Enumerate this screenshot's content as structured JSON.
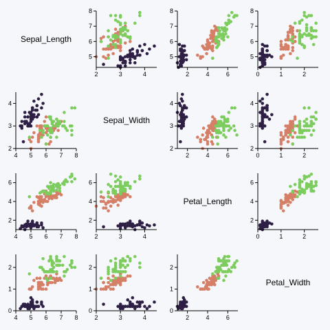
{
  "chart_data": {
    "type": "scatter",
    "title": "",
    "variables": [
      "Sepal_Length",
      "Sepal_Width",
      "Petal_Length",
      "Petal_Width"
    ],
    "axes": {
      "Sepal_Length": {
        "ticks": [
          4,
          5,
          6,
          7,
          8
        ],
        "range": [
          4,
          8
        ]
      },
      "Sepal_Width": {
        "ticks": [
          2,
          3,
          4
        ],
        "range": [
          2,
          4.5
        ]
      },
      "Petal_Length": {
        "ticks": [
          2,
          4,
          6
        ],
        "range": [
          1,
          7
        ]
      },
      "Petal_Width": {
        "ticks": [
          0,
          1,
          2
        ],
        "range": [
          0,
          2.6
        ]
      }
    },
    "x_axes_by_column": {
      "Sepal_Length": {
        "ticks": [
          4,
          5,
          6,
          7,
          8
        ],
        "range": [
          4,
          8
        ]
      },
      "Sepal_Width": {
        "ticks": [
          2,
          3,
          4
        ],
        "range": [
          2,
          4.5
        ]
      },
      "Petal_Length": {
        "ticks": [
          2,
          4,
          6
        ],
        "range": [
          1,
          7
        ]
      },
      "Petal_Width": {
        "ticks": [
          0,
          1,
          2
        ],
        "range": [
          0,
          2.6
        ]
      }
    },
    "y_axes_by_row": {
      "Sepal_Length": {
        "ticks": [
          5,
          6,
          7,
          8
        ],
        "range": [
          4.3,
          8
        ]
      },
      "Sepal_Width": {
        "ticks": [
          2,
          3,
          4
        ],
        "range": [
          2,
          4.5
        ]
      },
      "Petal_Length": {
        "ticks": [
          2,
          4,
          6
        ],
        "range": [
          1,
          7
        ]
      },
      "Petal_Width": {
        "ticks": [
          0,
          1,
          2
        ],
        "range": [
          0,
          2.6
        ]
      }
    },
    "grid": false,
    "legend": "none",
    "groups": [
      {
        "color": "#2e1f45",
        "points": [
          [
            5.1,
            3.5,
            1.4,
            0.2
          ],
          [
            4.9,
            3.0,
            1.4,
            0.2
          ],
          [
            4.7,
            3.2,
            1.3,
            0.2
          ],
          [
            4.6,
            3.1,
            1.5,
            0.2
          ],
          [
            5.0,
            3.6,
            1.4,
            0.2
          ],
          [
            5.4,
            3.9,
            1.7,
            0.4
          ],
          [
            4.6,
            3.4,
            1.4,
            0.3
          ],
          [
            5.0,
            3.4,
            1.5,
            0.2
          ],
          [
            4.4,
            2.9,
            1.4,
            0.2
          ],
          [
            4.9,
            3.1,
            1.5,
            0.1
          ],
          [
            5.4,
            3.7,
            1.5,
            0.2
          ],
          [
            4.8,
            3.4,
            1.6,
            0.2
          ],
          [
            4.8,
            3.0,
            1.4,
            0.1
          ],
          [
            4.3,
            3.0,
            1.1,
            0.1
          ],
          [
            5.8,
            4.0,
            1.2,
            0.2
          ],
          [
            5.7,
            4.4,
            1.5,
            0.4
          ],
          [
            5.4,
            3.9,
            1.3,
            0.4
          ],
          [
            5.1,
            3.5,
            1.4,
            0.3
          ],
          [
            5.7,
            3.8,
            1.7,
            0.3
          ],
          [
            5.1,
            3.8,
            1.5,
            0.3
          ],
          [
            5.4,
            3.4,
            1.7,
            0.2
          ],
          [
            5.1,
            3.7,
            1.5,
            0.4
          ],
          [
            4.6,
            3.6,
            1.0,
            0.2
          ],
          [
            5.1,
            3.3,
            1.7,
            0.5
          ],
          [
            4.8,
            3.4,
            1.9,
            0.2
          ],
          [
            5.0,
            3.0,
            1.6,
            0.2
          ],
          [
            5.0,
            3.4,
            1.6,
            0.4
          ],
          [
            5.2,
            3.5,
            1.5,
            0.2
          ],
          [
            5.2,
            3.4,
            1.4,
            0.2
          ],
          [
            4.7,
            3.2,
            1.6,
            0.2
          ],
          [
            4.8,
            3.1,
            1.6,
            0.2
          ],
          [
            5.4,
            3.4,
            1.5,
            0.4
          ],
          [
            5.2,
            4.1,
            1.5,
            0.1
          ],
          [
            5.5,
            4.2,
            1.4,
            0.2
          ],
          [
            4.9,
            3.1,
            1.5,
            0.2
          ],
          [
            5.0,
            3.2,
            1.2,
            0.2
          ],
          [
            5.5,
            3.5,
            1.3,
            0.2
          ],
          [
            4.9,
            3.6,
            1.4,
            0.1
          ],
          [
            4.4,
            3.0,
            1.3,
            0.2
          ],
          [
            5.1,
            3.4,
            1.5,
            0.2
          ],
          [
            5.0,
            3.5,
            1.3,
            0.3
          ],
          [
            4.5,
            2.3,
            1.3,
            0.3
          ],
          [
            4.4,
            3.2,
            1.3,
            0.2
          ],
          [
            5.0,
            3.5,
            1.6,
            0.6
          ],
          [
            5.1,
            3.8,
            1.9,
            0.4
          ],
          [
            4.8,
            3.0,
            1.4,
            0.3
          ],
          [
            5.1,
            3.8,
            1.6,
            0.2
          ],
          [
            4.6,
            3.2,
            1.4,
            0.2
          ],
          [
            5.3,
            3.7,
            1.5,
            0.2
          ],
          [
            5.0,
            3.3,
            1.4,
            0.2
          ]
        ]
      },
      {
        "color": "#d47f66",
        "points": [
          [
            7.0,
            3.2,
            4.7,
            1.4
          ],
          [
            6.4,
            3.2,
            4.5,
            1.5
          ],
          [
            6.9,
            3.1,
            4.9,
            1.5
          ],
          [
            5.5,
            2.3,
            4.0,
            1.3
          ],
          [
            6.5,
            2.8,
            4.6,
            1.5
          ],
          [
            5.7,
            2.8,
            4.5,
            1.3
          ],
          [
            6.3,
            3.3,
            4.7,
            1.6
          ],
          [
            4.9,
            2.4,
            3.3,
            1.0
          ],
          [
            6.6,
            2.9,
            4.6,
            1.3
          ],
          [
            5.2,
            2.7,
            3.9,
            1.4
          ],
          [
            5.0,
            2.0,
            3.5,
            1.0
          ],
          [
            5.9,
            3.0,
            4.2,
            1.5
          ],
          [
            6.0,
            2.2,
            4.0,
            1.0
          ],
          [
            6.1,
            2.9,
            4.7,
            1.4
          ],
          [
            5.6,
            2.9,
            3.6,
            1.3
          ],
          [
            6.7,
            3.1,
            4.4,
            1.4
          ],
          [
            5.6,
            3.0,
            4.5,
            1.5
          ],
          [
            5.8,
            2.7,
            4.1,
            1.0
          ],
          [
            6.2,
            2.2,
            4.5,
            1.5
          ],
          [
            5.6,
            2.5,
            3.9,
            1.1
          ],
          [
            5.9,
            3.2,
            4.8,
            1.8
          ],
          [
            6.1,
            2.8,
            4.0,
            1.3
          ],
          [
            6.3,
            2.5,
            4.9,
            1.5
          ],
          [
            6.1,
            2.8,
            4.7,
            1.2
          ],
          [
            6.4,
            2.9,
            4.3,
            1.3
          ],
          [
            6.6,
            3.0,
            4.4,
            1.4
          ],
          [
            6.8,
            2.8,
            4.8,
            1.4
          ],
          [
            6.7,
            3.0,
            5.0,
            1.7
          ],
          [
            6.0,
            2.9,
            4.5,
            1.5
          ],
          [
            5.7,
            2.6,
            3.5,
            1.0
          ],
          [
            5.5,
            2.4,
            3.8,
            1.1
          ],
          [
            5.5,
            2.4,
            3.7,
            1.0
          ],
          [
            5.8,
            2.7,
            3.9,
            1.2
          ],
          [
            6.0,
            2.7,
            5.1,
            1.6
          ],
          [
            5.4,
            3.0,
            4.5,
            1.5
          ],
          [
            6.0,
            3.4,
            4.5,
            1.6
          ],
          [
            6.7,
            3.1,
            4.7,
            1.5
          ],
          [
            6.3,
            2.3,
            4.4,
            1.3
          ],
          [
            5.6,
            3.0,
            4.1,
            1.3
          ],
          [
            5.5,
            2.5,
            4.0,
            1.3
          ],
          [
            5.5,
            2.6,
            4.4,
            1.2
          ],
          [
            6.1,
            3.0,
            4.6,
            1.4
          ],
          [
            5.8,
            2.6,
            4.0,
            1.2
          ],
          [
            5.0,
            2.3,
            3.3,
            1.0
          ],
          [
            5.6,
            2.7,
            4.2,
            1.3
          ],
          [
            5.7,
            3.0,
            4.2,
            1.2
          ],
          [
            5.7,
            2.9,
            4.2,
            1.3
          ],
          [
            6.2,
            2.9,
            4.3,
            1.3
          ],
          [
            5.1,
            2.5,
            3.0,
            1.1
          ],
          [
            5.7,
            2.8,
            4.1,
            1.3
          ]
        ]
      },
      {
        "color": "#7ccc5e",
        "points": [
          [
            6.3,
            3.3,
            6.0,
            2.5
          ],
          [
            5.8,
            2.7,
            5.1,
            1.9
          ],
          [
            7.1,
            3.0,
            5.9,
            2.1
          ],
          [
            6.3,
            2.9,
            5.6,
            1.8
          ],
          [
            6.5,
            3.0,
            5.8,
            2.2
          ],
          [
            7.6,
            3.0,
            6.6,
            2.1
          ],
          [
            4.9,
            2.5,
            4.5,
            1.7
          ],
          [
            7.3,
            2.9,
            6.3,
            1.8
          ],
          [
            6.7,
            2.5,
            5.8,
            1.8
          ],
          [
            7.2,
            3.6,
            6.1,
            2.5
          ],
          [
            6.5,
            3.2,
            5.1,
            2.0
          ],
          [
            6.4,
            2.7,
            5.3,
            1.9
          ],
          [
            6.8,
            3.0,
            5.5,
            2.1
          ],
          [
            5.7,
            2.5,
            5.0,
            2.0
          ],
          [
            5.8,
            2.8,
            5.1,
            2.4
          ],
          [
            6.4,
            3.2,
            5.3,
            2.3
          ],
          [
            6.5,
            3.0,
            5.5,
            1.8
          ],
          [
            7.7,
            3.8,
            6.7,
            2.2
          ],
          [
            7.7,
            2.6,
            6.9,
            2.3
          ],
          [
            6.0,
            2.2,
            5.0,
            1.5
          ],
          [
            6.9,
            3.2,
            5.7,
            2.3
          ],
          [
            5.6,
            2.8,
            4.9,
            2.0
          ],
          [
            7.7,
            2.8,
            6.7,
            2.0
          ],
          [
            6.3,
            2.7,
            4.9,
            1.8
          ],
          [
            6.7,
            3.3,
            5.7,
            2.1
          ],
          [
            7.2,
            3.2,
            6.0,
            1.8
          ],
          [
            6.2,
            2.8,
            4.8,
            1.8
          ],
          [
            6.1,
            3.0,
            4.9,
            1.8
          ],
          [
            6.4,
            2.8,
            5.6,
            2.1
          ],
          [
            7.2,
            3.0,
            5.8,
            1.6
          ],
          [
            7.4,
            2.8,
            6.1,
            1.9
          ],
          [
            7.9,
            3.8,
            6.4,
            2.0
          ],
          [
            6.4,
            2.8,
            5.6,
            2.2
          ],
          [
            6.3,
            2.8,
            5.1,
            1.5
          ],
          [
            6.1,
            2.6,
            5.6,
            1.4
          ],
          [
            7.7,
            3.0,
            6.1,
            2.3
          ],
          [
            6.3,
            3.4,
            5.6,
            2.4
          ],
          [
            6.4,
            3.1,
            5.5,
            1.8
          ],
          [
            6.0,
            3.0,
            4.8,
            1.8
          ],
          [
            6.9,
            3.1,
            5.4,
            2.1
          ],
          [
            6.7,
            3.1,
            5.6,
            2.4
          ],
          [
            6.9,
            3.1,
            5.1,
            2.3
          ],
          [
            5.8,
            2.7,
            5.1,
            1.9
          ],
          [
            6.8,
            3.2,
            5.9,
            2.3
          ],
          [
            6.7,
            3.3,
            5.7,
            2.5
          ],
          [
            6.7,
            3.0,
            5.2,
            2.3
          ],
          [
            6.3,
            2.5,
            5.0,
            1.9
          ],
          [
            6.5,
            3.0,
            5.2,
            2.0
          ],
          [
            6.2,
            3.4,
            5.4,
            2.3
          ],
          [
            5.9,
            3.0,
            5.1,
            1.8
          ]
        ]
      }
    ]
  }
}
